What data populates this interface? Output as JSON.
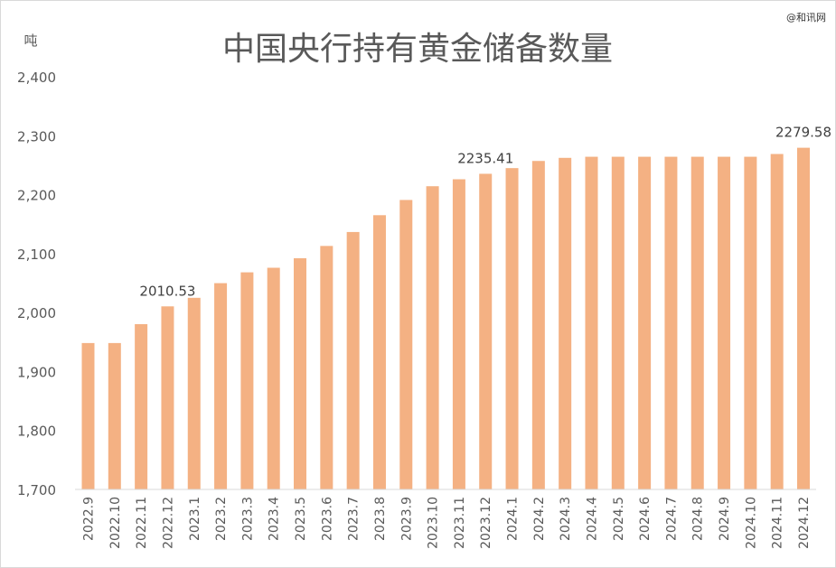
{
  "chart_data": {
    "type": "bar",
    "title": "中国央行持有黄金储备数量",
    "ylabel": "吨",
    "xlabel": "",
    "ylim": [
      1700,
      2400
    ],
    "yticks": [
      1700,
      1800,
      1900,
      2000,
      2100,
      2200,
      2300,
      2400
    ],
    "ytick_labels": [
      "1,700",
      "1,800",
      "1,900",
      "2,000",
      "2,100",
      "2,200",
      "2,300",
      "2,400"
    ],
    "grid": false,
    "legend": "none",
    "categories": [
      "2022.9",
      "2022.10",
      "2022.11",
      "2022.12",
      "2023.1",
      "2023.2",
      "2023.3",
      "2023.4",
      "2023.5",
      "2023.6",
      "2023.7",
      "2023.8",
      "2023.9",
      "2023.10",
      "2023.11",
      "2023.12",
      "2024.1",
      "2024.2",
      "2024.3",
      "2024.4",
      "2024.5",
      "2024.6",
      "2024.7",
      "2024.8",
      "2024.9",
      "2024.10",
      "2024.11",
      "2024.12"
    ],
    "values": [
      1948.31,
      1948.31,
      1980.4,
      2010.53,
      2025.04,
      2049.91,
      2068.25,
      2076.02,
      2092.19,
      2113.02,
      2136.66,
      2165.18,
      2191.0,
      2214.33,
      2226.14,
      2235.41,
      2245.05,
      2257.18,
      2262.45,
      2264.32,
      2264.32,
      2264.32,
      2264.32,
      2264.32,
      2264.32,
      2264.32,
      2268.98,
      2279.58
    ],
    "data_labels": [
      {
        "category": "2022.12",
        "text": "2010.53"
      },
      {
        "category": "2023.12",
        "text": "2235.41"
      },
      {
        "category": "2024.12",
        "text": "2279.58"
      }
    ],
    "colors": {
      "bar": "#f4b183",
      "text": "#595959",
      "axis": "#d9d9d9"
    }
  },
  "watermark": "@和讯网"
}
